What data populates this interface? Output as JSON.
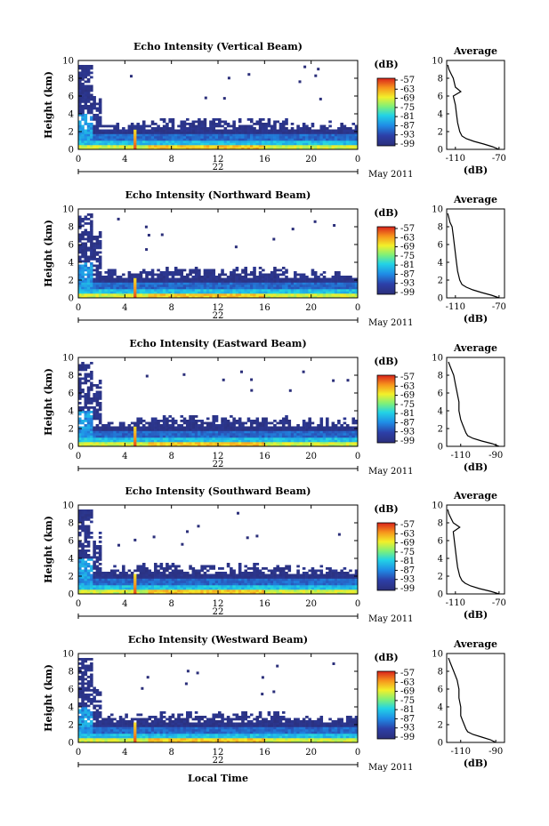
{
  "chart_data": [
    {
      "type": "heatmap",
      "title": "Echo Intensity (Vertical Beam)",
      "xlabel": "",
      "ylabel": "Height (km)",
      "xlim": [
        0,
        24
      ],
      "ylim": [
        0,
        10
      ],
      "x_ticks": [
        "0",
        "4",
        "8",
        "12",
        "16",
        "20",
        "0"
      ],
      "y_ticks": [
        "0",
        "2",
        "4",
        "6",
        "8",
        "10"
      ],
      "date_marker": "22",
      "date_label": "May 2011",
      "colorbar": {
        "unit": "(dB)",
        "ticks": [
          "-57",
          "-63",
          "-69",
          "-75",
          "-81",
          "-87",
          "-93",
          "-99"
        ]
      },
      "average_profile": {
        "title": "Average",
        "xlabel": "(dB)",
        "x_ticks": [
          "-110",
          "-70"
        ],
        "xlim": [
          -118,
          -65
        ],
        "heights": [
          0.0,
          0.3,
          0.6,
          0.9,
          1.2,
          1.5,
          2.0,
          2.5,
          3.0,
          4.0,
          5.0,
          6.0,
          6.5,
          7.0,
          8.0,
          8.5,
          9.0,
          9.5
        ],
        "values": [
          -70,
          -76,
          -84,
          -93,
          -100,
          -104,
          -106,
          -107,
          -108,
          -109,
          -110,
          -112,
          -105,
          -110,
          -112,
          -114,
          -116,
          -117
        ]
      }
    },
    {
      "type": "heatmap",
      "title": "Echo Intensity (Northward Beam)",
      "xlabel": "",
      "ylabel": "Height (km)",
      "xlim": [
        0,
        24
      ],
      "ylim": [
        0,
        10
      ],
      "x_ticks": [
        "0",
        "4",
        "8",
        "12",
        "16",
        "20",
        "0"
      ],
      "y_ticks": [
        "0",
        "2",
        "4",
        "6",
        "8",
        "10"
      ],
      "date_marker": "22",
      "date_label": "May 2011",
      "colorbar": {
        "unit": "(dB)",
        "ticks": [
          "-57",
          "-63",
          "-69",
          "-75",
          "-81",
          "-87",
          "-93",
          "-99"
        ]
      },
      "average_profile": {
        "title": "Average",
        "xlabel": "(dB)",
        "x_ticks": [
          "-110",
          "-70"
        ],
        "xlim": [
          -118,
          -65
        ],
        "heights": [
          0.0,
          0.3,
          0.6,
          0.9,
          1.2,
          1.5,
          2.0,
          2.5,
          3.0,
          4.0,
          5.0,
          6.0,
          7.0,
          8.0,
          8.5,
          9.0,
          9.5
        ],
        "values": [
          -70,
          -77,
          -86,
          -94,
          -100,
          -104,
          -106,
          -107,
          -108,
          -109,
          -110,
          -111,
          -112,
          -113,
          -115,
          -116,
          -117
        ]
      }
    },
    {
      "type": "heatmap",
      "title": "Echo Intensity (Eastward Beam)",
      "xlabel": "",
      "ylabel": "Height (km)",
      "xlim": [
        0,
        24
      ],
      "ylim": [
        0,
        10
      ],
      "x_ticks": [
        "0",
        "4",
        "8",
        "12",
        "16",
        "20",
        "0"
      ],
      "y_ticks": [
        "0",
        "2",
        "4",
        "6",
        "8",
        "10"
      ],
      "date_marker": "22",
      "date_label": "May 2011",
      "colorbar": {
        "unit": "(dB)",
        "ticks": [
          "-57",
          "-63",
          "-69",
          "-75",
          "-81",
          "-87",
          "-93",
          "-99"
        ]
      },
      "average_profile": {
        "title": "Average",
        "xlabel": "(dB)",
        "x_ticks": [
          "-110",
          "-90"
        ],
        "xlim": [
          -118,
          -85
        ],
        "heights": [
          0.0,
          0.3,
          0.6,
          0.9,
          1.2,
          1.5,
          2.0,
          2.5,
          3.0,
          4.0,
          5.0,
          6.0,
          7.0,
          8.0,
          8.5,
          9.0,
          9.5
        ],
        "values": [
          -88,
          -92,
          -98,
          -103,
          -106,
          -107,
          -108,
          -109,
          -110,
          -111,
          -111,
          -112,
          -113,
          -114,
          -115,
          -116,
          -117
        ]
      }
    },
    {
      "type": "heatmap",
      "title": "Echo Intensity (Southward Beam)",
      "xlabel": "",
      "ylabel": "Height (km)",
      "xlim": [
        0,
        24
      ],
      "ylim": [
        0,
        10
      ],
      "x_ticks": [
        "0",
        "4",
        "8",
        "12",
        "16",
        "20",
        "0"
      ],
      "y_ticks": [
        "0",
        "2",
        "4",
        "6",
        "8",
        "10"
      ],
      "date_marker": "22",
      "date_label": "May 2011",
      "colorbar": {
        "unit": "(dB)",
        "ticks": [
          "-57",
          "-63",
          "-69",
          "-75",
          "-81",
          "-87",
          "-93",
          "-99"
        ]
      },
      "average_profile": {
        "title": "Average",
        "xlabel": "(dB)",
        "x_ticks": [
          "-110",
          "-70"
        ],
        "xlim": [
          -118,
          -65
        ],
        "heights": [
          0.0,
          0.3,
          0.6,
          0.9,
          1.2,
          1.5,
          2.0,
          2.5,
          3.0,
          4.0,
          5.0,
          6.0,
          7.0,
          7.5,
          8.0,
          8.5,
          9.0,
          9.5
        ],
        "values": [
          -70,
          -78,
          -88,
          -96,
          -101,
          -104,
          -106,
          -107,
          -108,
          -109,
          -110,
          -111,
          -112,
          -106,
          -112,
          -114,
          -116,
          -117
        ]
      }
    },
    {
      "type": "heatmap",
      "title": "Echo Intensity (Westward Beam)",
      "xlabel": "Local Time",
      "ylabel": "Height (km)",
      "xlim": [
        0,
        24
      ],
      "ylim": [
        0,
        10
      ],
      "x_ticks": [
        "0",
        "4",
        "8",
        "12",
        "16",
        "20",
        "0"
      ],
      "y_ticks": [
        "0",
        "2",
        "4",
        "6",
        "8",
        "10"
      ],
      "date_marker": "22",
      "date_label": "May 2011",
      "colorbar": {
        "unit": "(dB)",
        "ticks": [
          "-57",
          "-63",
          "-69",
          "-75",
          "-81",
          "-87",
          "-93",
          "-99"
        ]
      },
      "average_profile": {
        "title": "Average",
        "xlabel": "(dB)",
        "x_ticks": [
          "-110",
          "-90"
        ],
        "xlim": [
          -118,
          -85
        ],
        "heights": [
          0.0,
          0.3,
          0.6,
          0.9,
          1.2,
          1.5,
          2.0,
          2.5,
          3.0,
          4.0,
          5.0,
          6.0,
          7.0,
          8.0,
          8.5,
          9.0,
          9.5
        ],
        "values": [
          -90,
          -93,
          -98,
          -103,
          -106,
          -107,
          -108,
          -109,
          -110,
          -110,
          -111,
          -111,
          -112,
          -114,
          -115,
          -116,
          -117
        ]
      }
    }
  ]
}
